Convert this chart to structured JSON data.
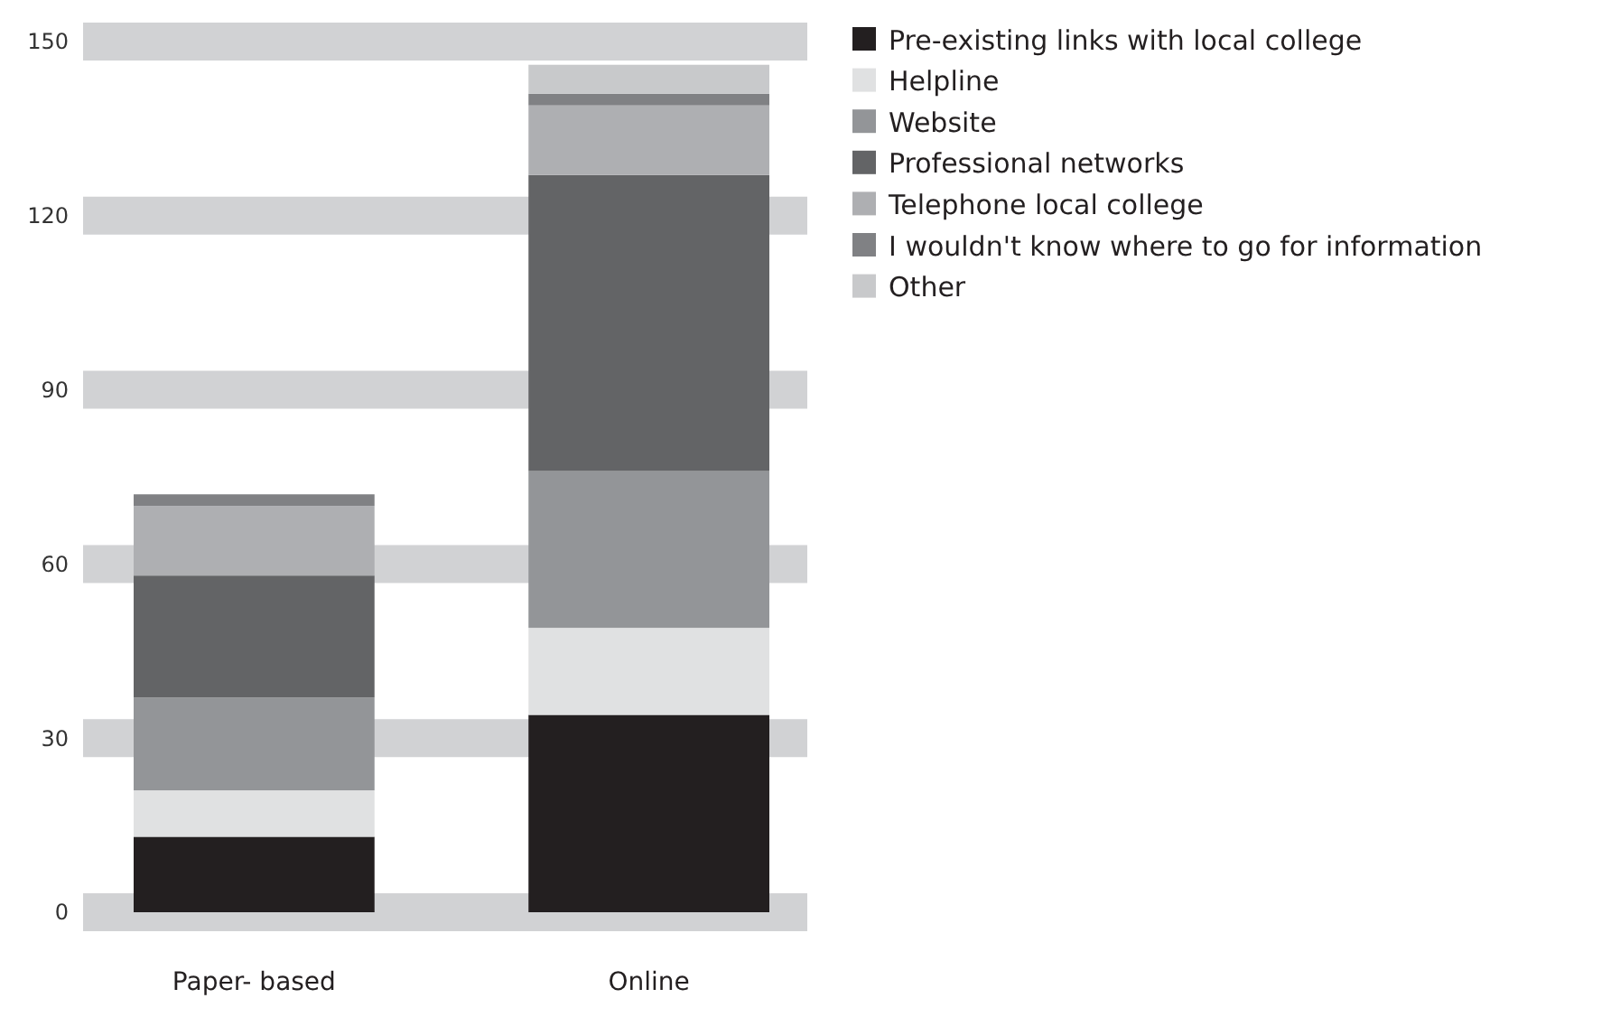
{
  "chart_data": {
    "type": "bar",
    "stacked": true,
    "categories": [
      "Paper- based",
      "Online"
    ],
    "series": [
      {
        "name": "Pre-existing links with local college",
        "color": "#231f20",
        "values": [
          13,
          34
        ]
      },
      {
        "name": "Helpline",
        "color": "#e0e1e2",
        "values": [
          8,
          15
        ]
      },
      {
        "name": "Website",
        "color": "#939598",
        "values": [
          16,
          27
        ]
      },
      {
        "name": "Professional networks",
        "color": "#636466",
        "values": [
          21,
          51
        ]
      },
      {
        "name": "Telephone local college",
        "color": "#aeafb2",
        "values": [
          12,
          12
        ]
      },
      {
        "name": "I wouldn't know where to go for information",
        "color": "#808184",
        "values": [
          2,
          2
        ]
      },
      {
        "name": "Other",
        "color": "#c8c9cb",
        "values": [
          0,
          5
        ]
      }
    ],
    "ylim": [
      0,
      150
    ],
    "yticks": [
      0,
      30,
      60,
      90,
      120,
      150
    ],
    "grid": "y",
    "legend": "right"
  }
}
